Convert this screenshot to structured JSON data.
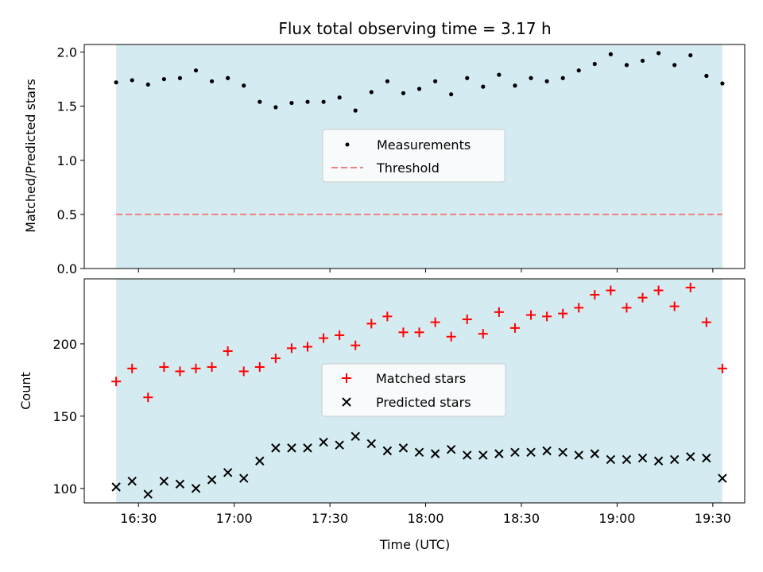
{
  "chart_data": {
    "type": "scatter",
    "title": "Flux total observing time = 3.17 h",
    "xlabel": "Time (UTC)",
    "x_ticks": [
      "16:30",
      "17:00",
      "17:30",
      "18:00",
      "18:30",
      "19:00",
      "19:30"
    ],
    "x_range": [
      "16:13",
      "19:40"
    ],
    "colors": {
      "shade": "#d4ebf1",
      "measurements": "#000000",
      "threshold": "#f08080",
      "matched": "#ff0000",
      "predicted": "#000000"
    },
    "top": {
      "ylabel": "Matched/Predicted stars",
      "ylim": [
        0,
        2.07
      ],
      "yticks": [
        "0.0",
        "0.5",
        "1.0",
        "1.5",
        "2.0"
      ],
      "threshold": 0.5,
      "legend_position": "center",
      "legend": [
        "Measurements",
        "Threshold"
      ],
      "shaded_range": [
        "16:23",
        "19:33"
      ]
    },
    "bottom": {
      "ylabel": "Count",
      "ylim": [
        90,
        245
      ],
      "yticks": [
        "100",
        "150",
        "200"
      ],
      "legend_position": "center",
      "legend": [
        "Matched stars",
        "Predicted stars"
      ],
      "shaded_range": [
        "16:23",
        "19:33"
      ]
    },
    "series": [
      {
        "name": "Measurements",
        "x": [
          "16:23",
          "16:28",
          "16:33",
          "16:38",
          "16:43",
          "16:48",
          "16:53",
          "16:58",
          "17:03",
          "17:08",
          "17:13",
          "17:18",
          "17:23",
          "17:28",
          "17:33",
          "17:38",
          "17:43",
          "17:48",
          "17:53",
          "17:58",
          "18:03",
          "18:08",
          "18:13",
          "18:18",
          "18:23",
          "18:28",
          "18:33",
          "18:38",
          "18:43",
          "18:48",
          "18:53",
          "18:58",
          "19:03",
          "19:08",
          "19:13",
          "19:18",
          "19:23",
          "19:28",
          "19:33"
        ],
        "y": [
          1.72,
          1.74,
          1.7,
          1.75,
          1.76,
          1.83,
          1.73,
          1.76,
          1.69,
          1.54,
          1.49,
          1.53,
          1.54,
          1.54,
          1.58,
          1.46,
          1.63,
          1.73,
          1.62,
          1.66,
          1.73,
          1.61,
          1.76,
          1.68,
          1.79,
          1.69,
          1.76,
          1.73,
          1.76,
          1.83,
          1.89,
          1.98,
          1.88,
          1.92,
          1.99,
          1.88,
          1.97,
          1.78,
          1.71
        ]
      },
      {
        "name": "Matched stars",
        "x": [
          "16:23",
          "16:28",
          "16:33",
          "16:38",
          "16:43",
          "16:48",
          "16:53",
          "16:58",
          "17:03",
          "17:08",
          "17:13",
          "17:18",
          "17:23",
          "17:28",
          "17:33",
          "17:38",
          "17:43",
          "17:48",
          "17:53",
          "17:58",
          "18:03",
          "18:08",
          "18:13",
          "18:18",
          "18:23",
          "18:28",
          "18:33",
          "18:38",
          "18:43",
          "18:48",
          "18:53",
          "18:58",
          "19:03",
          "19:08",
          "19:13",
          "19:18",
          "19:23",
          "19:28",
          "19:33"
        ],
        "y": [
          174,
          183,
          163,
          184,
          181,
          183,
          184,
          195,
          181,
          184,
          190,
          197,
          198,
          204,
          206,
          199,
          214,
          219,
          208,
          208,
          215,
          205,
          217,
          207,
          222,
          211,
          220,
          219,
          221,
          225,
          234,
          237,
          225,
          232,
          237,
          226,
          239,
          215,
          183
        ]
      },
      {
        "name": "Predicted stars",
        "x": [
          "16:23",
          "16:28",
          "16:33",
          "16:38",
          "16:43",
          "16:48",
          "16:53",
          "16:58",
          "17:03",
          "17:08",
          "17:13",
          "17:18",
          "17:23",
          "17:28",
          "17:33",
          "17:38",
          "17:43",
          "17:48",
          "17:53",
          "17:58",
          "18:03",
          "18:08",
          "18:13",
          "18:18",
          "18:23",
          "18:28",
          "18:33",
          "18:38",
          "18:43",
          "18:48",
          "18:53",
          "18:58",
          "19:03",
          "19:08",
          "19:13",
          "19:18",
          "19:23",
          "19:28",
          "19:33"
        ],
        "y": [
          101,
          105,
          96,
          105,
          103,
          100,
          106,
          111,
          107,
          119,
          128,
          128,
          128,
          132,
          130,
          136,
          131,
          126,
          128,
          125,
          124,
          127,
          123,
          123,
          124,
          125,
          125,
          126,
          125,
          123,
          124,
          120,
          120,
          121,
          119,
          120,
          122,
          121,
          107
        ]
      }
    ]
  }
}
